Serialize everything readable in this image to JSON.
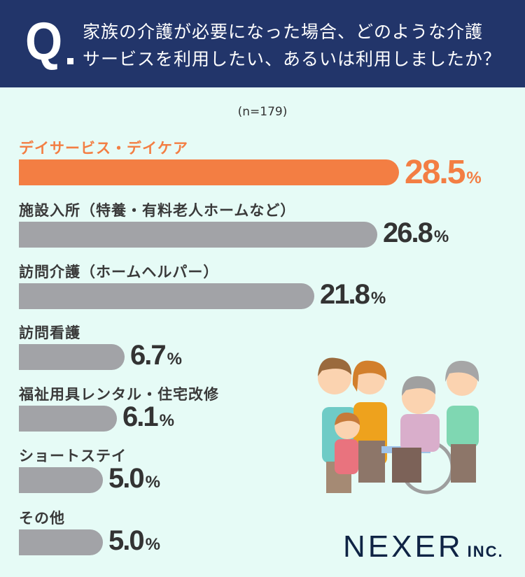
{
  "header": {
    "q_mark": "Q",
    "line1": "家族の介護が必要になった場合、どのような介護",
    "line2": "サービスを利用したい、あるいは利用しましたか？"
  },
  "chart_data": {
    "type": "bar",
    "orientation": "horizontal",
    "title": "家族の介護が必要になった場合、どのような介護サービスを利用したい、あるいは利用しましたか？",
    "sample": "(n=179)",
    "categories": [
      "デイサービス・デイケア",
      "施設入所（特養・有料老人ホームなど）",
      "訪問介護（ホームヘルパー）",
      "訪問看護",
      "福祉用具レンタル・住宅改修",
      "ショートステイ",
      "その他"
    ],
    "values": [
      28.5,
      26.8,
      21.8,
      6.7,
      6.1,
      5.0,
      5.0
    ],
    "labels": [
      "28.5",
      "26.8",
      "21.8",
      "6.7",
      "6.1",
      "5.0",
      "5.0"
    ],
    "unit": "%",
    "highlight_color": "#f37e43",
    "bar_color": "#a2a3a7"
  },
  "brand": {
    "name": "NEXER",
    "suffix": "INC."
  }
}
